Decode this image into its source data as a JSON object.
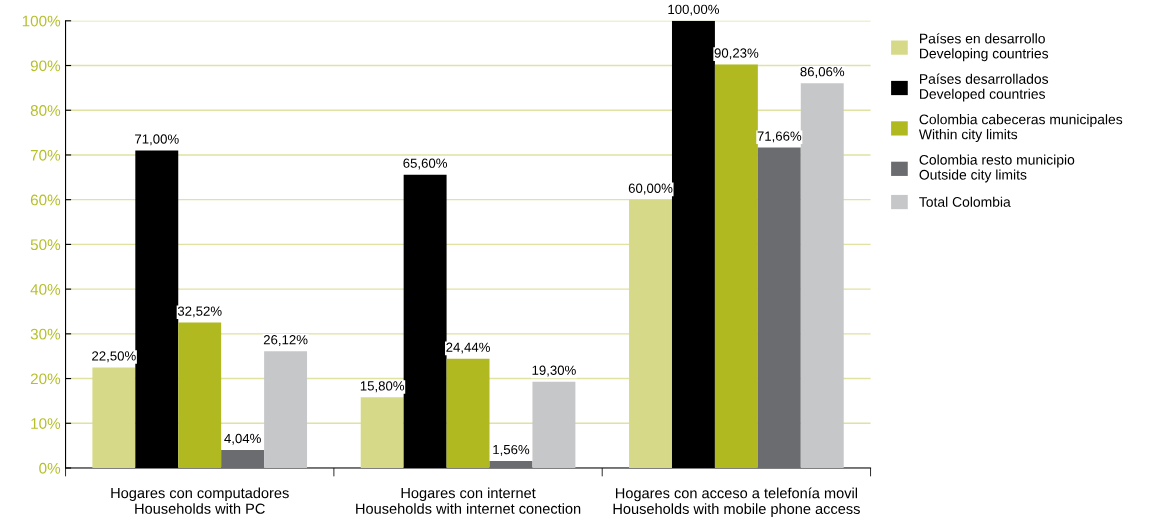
{
  "chart_data": {
    "type": "bar",
    "categories": [
      "Hogares con computadores\nHouseholds with PC",
      "Hogares con internet\nHouseholds with internet conection",
      "Hogares con acceso a telefonía movil\nHouseholds with mobile phone access"
    ],
    "series": [
      {
        "name": "Países en desarrollo\nDeveloping countries",
        "color": "#d6da88",
        "values": [
          22.5,
          15.8,
          60
        ],
        "value_labels": [
          "22,50%",
          "15,80%",
          "60,00%"
        ]
      },
      {
        "name": "Países desarrollados\nDeveloped countries",
        "color": "#000000",
        "values": [
          71,
          65.6,
          100
        ],
        "value_labels": [
          "71,00%",
          "65,60%",
          "100,00%"
        ]
      },
      {
        "name": "Colombia cabeceras municipales\nWithin city limits",
        "color": "#b1b920",
        "values": [
          32.52,
          24.44,
          90.23
        ],
        "value_labels": [
          "32,52%",
          "24,44%",
          "90,23%"
        ]
      },
      {
        "name": "Colombia resto municipio\nOutside city limits",
        "color": "#6b6c70",
        "values": [
          4.04,
          1.56,
          71.66
        ],
        "value_labels": [
          "4,04%",
          "1,56%",
          "71,66%"
        ]
      },
      {
        "name": "Total Colombia",
        "color": "#c6c7c9",
        "values": [
          26.12,
          19.3,
          86.06
        ],
        "value_labels": [
          "26,12%",
          "19,30%",
          "86,06%"
        ]
      }
    ],
    "ylim": [
      0,
      100
    ],
    "yticks": [
      {
        "value": 0,
        "label": "0%"
      },
      {
        "value": 10,
        "label": "10%"
      },
      {
        "value": 20,
        "label": "20%"
      },
      {
        "value": 30,
        "label": "30%"
      },
      {
        "value": 40,
        "label": "40%"
      },
      {
        "value": 50,
        "label": "50%"
      },
      {
        "value": 60,
        "label": "60%"
      },
      {
        "value": 70,
        "label": "70%"
      },
      {
        "value": 80,
        "label": "80%"
      },
      {
        "value": 90,
        "label": "90%"
      },
      {
        "value": 100,
        "label": "100%"
      }
    ],
    "grid": "y",
    "legend": "right"
  }
}
